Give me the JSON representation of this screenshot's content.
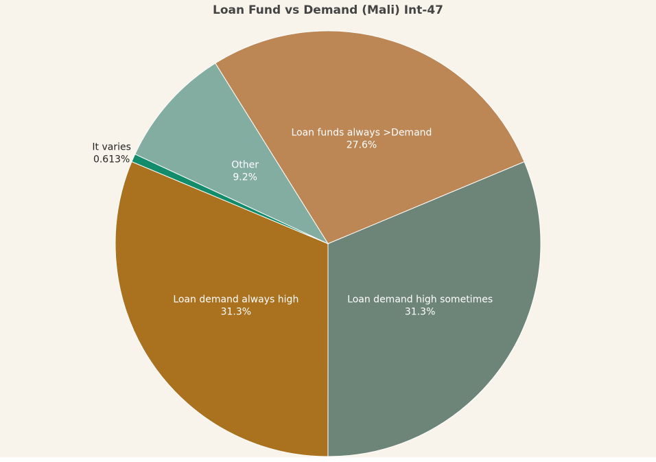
{
  "chart_data": {
    "type": "pie",
    "title": "Loan Fund vs Demand (Mali) Int-47",
    "background_color": "#f8f4eb",
    "slices": [
      {
        "label": "Loan funds always >Demand",
        "percent_label": "27.6%",
        "value": 27.6,
        "color": "#bc8755"
      },
      {
        "label": "Loan demand high sometimes",
        "percent_label": "31.3%",
        "value": 31.3,
        "color": "#6d8479"
      },
      {
        "label": "Loan demand always high",
        "percent_label": "31.3%",
        "value": 31.3,
        "color": "#aa711e"
      },
      {
        "label": "It varies",
        "percent_label": "0.613%",
        "value": 0.613,
        "color": "#138c6c"
      },
      {
        "label": "Other",
        "percent_label": "9.2%",
        "value": 9.2,
        "color": "#84ada2"
      }
    ]
  }
}
